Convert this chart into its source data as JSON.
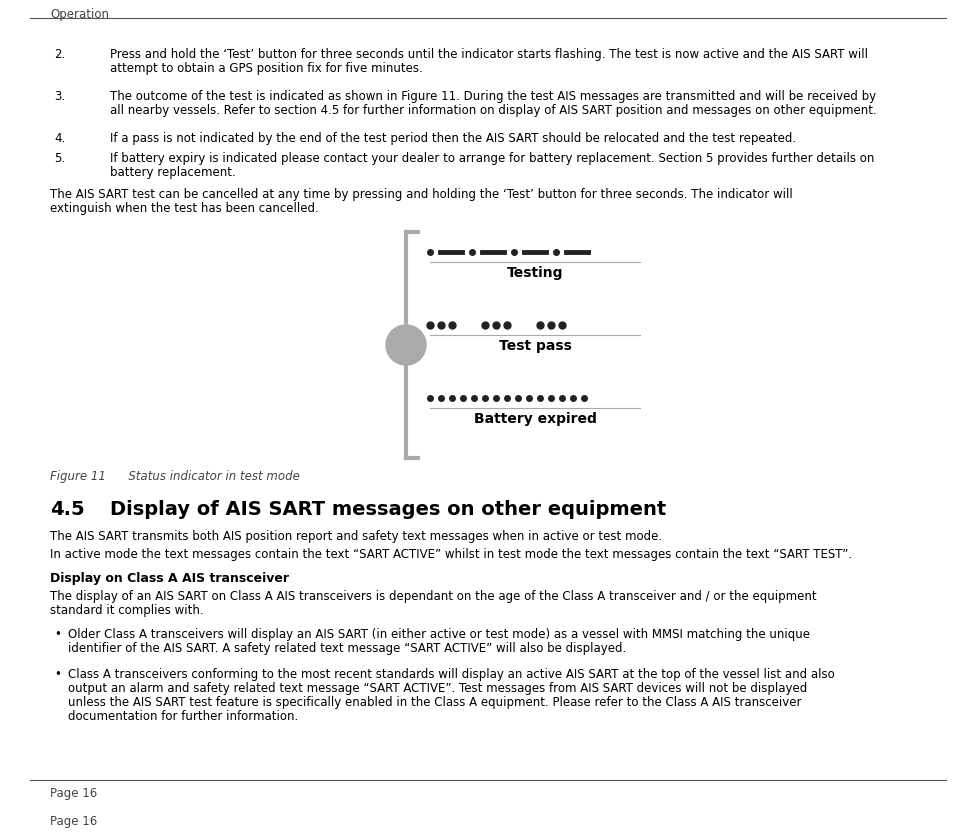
{
  "page_title": "Operation",
  "bg_color": "#ffffff",
  "item2": "Press and hold the ‘Test’ button for three seconds until the indicator starts flashing. The test is now active and the AIS SART will attempt to obtain a GPS position fix for five minutes.",
  "item3": "The outcome of the test is indicated as shown in Figure 11. During the test AIS messages are transmitted and will be received by all nearby vessels. Refer to section 4.5 for further information on display of AIS SART position and messages on other equipment.",
  "item4": "If a pass is not indicated by the end of the test period then the AIS SART should be relocated and the test repeated.",
  "item5": "If battery expiry is indicated please contact your dealer to arrange for battery replacement. Section 5 provides further details on battery replacement.",
  "cancel_line1": "The AIS SART test can be cancelled at any time by pressing and holding the ‘Test’ button for three seconds. The indicator will",
  "cancel_line2": "extinguish when the test has been cancelled.",
  "figure_caption": "Figure 11      Status indicator in test mode",
  "label_testing": "Testing",
  "label_testpass": "Test pass",
  "label_battery": "Battery expired",
  "section_title_num": "4.5",
  "section_title_text": "Display of AIS SART messages on other equipment",
  "para1": "The AIS SART transmits both AIS position report and safety text messages when in active or test mode.",
  "para2": "In active mode the text messages contain the text “SART ACTIVE” whilst in test mode the text messages contain the text “SART TEST”.",
  "subhead": "Display on Class A AIS transceiver",
  "para3_l1": "The display of an AIS SART on Class A AIS transceivers is dependant on the age of the Class A transceiver and / or the equipment",
  "para3_l2": "standard it complies with.",
  "b1_l1": "Older Class A transceivers will display an AIS SART (in either active or test mode) as a vessel with MMSI matching the unique",
  "b1_l2": "identifier of the AIS SART. A safety related text message “SART ACTIVE” will also be displayed.",
  "b2_l1": "Class A transceivers conforming to the most recent standards will display an active AIS SART at the top of the vessel list and also",
  "b2_l2": "output an alarm and safety related text message “SART ACTIVE”. Test messages from AIS SART devices will not be displayed",
  "b2_l3": "unless the AIS SART test feature is specifically enabled in the Class A equipment. Please refer to the Class A AIS transceiver",
  "b2_l4": "documentation for further information.",
  "footer": "Page 16"
}
